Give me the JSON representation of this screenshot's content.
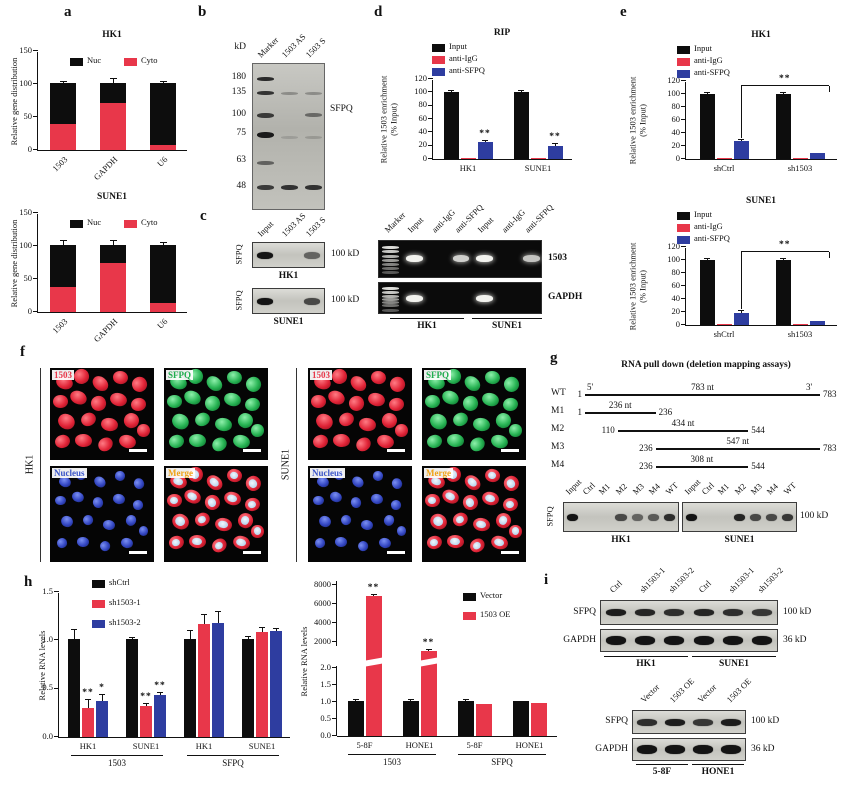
{
  "figure": {
    "panel_labels": {
      "a": "a",
      "b": "b",
      "c": "c",
      "d": "d",
      "e": "e",
      "f": "f",
      "g": "g",
      "h": "h",
      "i": "i"
    }
  },
  "chart_data": {
    "a1": {
      "type": "stacked-bar",
      "title": "HK1",
      "ylabel": "Relative gene distribution",
      "ymax": 150,
      "yticks": [
        {
          "v": 0,
          "label": "0"
        },
        {
          "v": 50,
          "label": "50"
        },
        {
          "v": 100,
          "label": "100"
        },
        {
          "v": 150,
          "label": "150"
        }
      ],
      "categories": [
        "1503",
        "GAPDH",
        "U6"
      ],
      "legend_pos": "inside-top",
      "series": [
        {
          "name": "Nuc",
          "color": "#0d0d0d",
          "values": [
            61,
            29,
            93
          ],
          "err": [
            2,
            6,
            2
          ]
        },
        {
          "name": "Cyto",
          "color": "#e8374a",
          "values": [
            40,
            72,
            8
          ],
          "err": [
            3,
            5,
            2
          ]
        }
      ]
    },
    "a2": {
      "type": "stacked-bar",
      "title": "SUNE1",
      "ylabel": "Relative gene distribution",
      "ymax": 150,
      "yticks": [
        {
          "v": 0,
          "label": "0"
        },
        {
          "v": 50,
          "label": "50"
        },
        {
          "v": 100,
          "label": "100"
        },
        {
          "v": 150,
          "label": "150"
        }
      ],
      "categories": [
        "1503",
        "GAPDH",
        "U6"
      ],
      "legend_pos": "inside-top",
      "series": [
        {
          "name": "Nuc",
          "color": "#0d0d0d",
          "values": [
            64,
            27,
            89
          ],
          "err": [
            5,
            5,
            2
          ]
        },
        {
          "name": "Cyto",
          "color": "#e8374a",
          "values": [
            38,
            75,
            13
          ],
          "err": [
            4,
            4,
            2
          ]
        }
      ]
    },
    "d": {
      "type": "grouped-bar",
      "title": "RIP",
      "ylabel": "Relative 1503 enrichment",
      "ylabel2": "(% Input)",
      "ymax": 120,
      "yticks": [
        {
          "v": 0,
          "label": "0"
        },
        {
          "v": 20,
          "label": "20"
        },
        {
          "v": 40,
          "label": "40"
        },
        {
          "v": 60,
          "label": "60"
        },
        {
          "v": 80,
          "label": "80"
        },
        {
          "v": 100,
          "label": "100"
        },
        {
          "v": 120,
          "label": "120"
        }
      ],
      "categories": [
        "HK1",
        "SUNE1"
      ],
      "legend_pos": "above-left",
      "series": [
        {
          "name": "Input",
          "color": "#0d0d0d",
          "values": [
            100,
            100
          ],
          "err": [
            1.5,
            1.5
          ]
        },
        {
          "name": "anti-IgG",
          "color": "#e8374a",
          "values": [
            2,
            2
          ],
          "err": [
            0.5,
            0.5
          ]
        },
        {
          "name": "anti-SFPQ",
          "color": "#2e3da0",
          "values": [
            25,
            20
          ],
          "err": [
            2,
            2
          ],
          "sig": [
            "**",
            "**"
          ]
        }
      ]
    },
    "e1": {
      "type": "grouped-bar",
      "title": "HK1",
      "ylabel": "Relative 1503 enrichment",
      "ylabel2": "(% Input)",
      "ymax": 120,
      "yticks": [
        {
          "v": 0,
          "label": "0"
        },
        {
          "v": 20,
          "label": "20"
        },
        {
          "v": 40,
          "label": "40"
        },
        {
          "v": 60,
          "label": "60"
        },
        {
          "v": 80,
          "label": "80"
        },
        {
          "v": 100,
          "label": "100"
        },
        {
          "v": 120,
          "label": "120"
        }
      ],
      "categories": [
        "shCtrl",
        "sh1503"
      ],
      "legend_pos": "above-left",
      "bracket": {
        "label": "**",
        "y": 112,
        "leg1": 32,
        "leg2": 103
      },
      "series": [
        {
          "name": "Input",
          "color": "#0d0d0d",
          "values": [
            100,
            100
          ],
          "err": [
            2,
            2
          ]
        },
        {
          "name": "anti-IgG",
          "color": "#e8374a",
          "values": [
            1.5,
            1.5
          ],
          "err": [
            0.5,
            0.5
          ]
        },
        {
          "name": "anti-SFPQ",
          "color": "#2e3da0",
          "values": [
            27,
            10
          ],
          "err": [
            2,
            1
          ]
        }
      ]
    },
    "e2": {
      "type": "grouped-bar",
      "title": "SUNE1",
      "ylabel": "Relative 1503 enrichment",
      "ylabel2": "(% Input)",
      "ymax": 120,
      "yticks": [
        {
          "v": 0,
          "label": "0"
        },
        {
          "v": 20,
          "label": "20"
        },
        {
          "v": 40,
          "label": "40"
        },
        {
          "v": 60,
          "label": "60"
        },
        {
          "v": 80,
          "label": "80"
        },
        {
          "v": 100,
          "label": "100"
        },
        {
          "v": 120,
          "label": "120"
        }
      ],
      "categories": [
        "shCtrl",
        "sh1503"
      ],
      "legend_pos": "above-left",
      "bracket": {
        "label": "**",
        "y": 112,
        "leg1": 24,
        "leg2": 103
      },
      "series": [
        {
          "name": "Input",
          "color": "#0d0d0d",
          "values": [
            100,
            100
          ],
          "err": [
            1.5,
            1.5
          ]
        },
        {
          "name": "anti-IgG",
          "color": "#e8374a",
          "values": [
            2,
            1
          ],
          "err": [
            0.5,
            0.5
          ]
        },
        {
          "name": "anti-SFPQ",
          "color": "#2e3da0",
          "values": [
            19,
            6
          ],
          "err": [
            2,
            1
          ]
        }
      ]
    },
    "h1": {
      "type": "grouped-bar",
      "ylabel": "Relative RNA levels",
      "ymax": 1.5,
      "yticks": [
        {
          "v": 0,
          "label": "0.0"
        },
        {
          "v": 0.5,
          "label": "0.5"
        },
        {
          "v": 1.0,
          "label": "1.0"
        },
        {
          "v": 1.5,
          "label": "1.5"
        }
      ],
      "categories": [
        "HK1",
        "SUNE1",
        "HK1",
        "SUNE1"
      ],
      "legend_pos": "top-left",
      "groups": [
        {
          "label": "1503",
          "span": 2
        },
        {
          "label": "SFPQ",
          "span": 2
        }
      ],
      "series": [
        {
          "name": "shCtrl",
          "color": "#0d0d0d",
          "values": [
            1.01,
            1.01,
            1.01,
            1.01
          ],
          "err": [
            0.1,
            0.01,
            0.09,
            0.03
          ]
        },
        {
          "name": "sh1503-1",
          "color": "#e8374a",
          "values": [
            0.3,
            0.32,
            1.17,
            1.09
          ],
          "err": [
            0.08,
            0.02,
            0.09,
            0.04
          ],
          "sig": [
            "**",
            "**",
            "",
            ""
          ]
        },
        {
          "name": "sh1503-2",
          "color": "#2e3da0",
          "values": [
            0.37,
            0.44,
            1.18,
            1.1
          ],
          "err": [
            0.07,
            0.02,
            0.11,
            0.02
          ],
          "sig": [
            "*",
            "**",
            "",
            ""
          ]
        }
      ]
    },
    "h2": {
      "type": "grouped-bar",
      "ylabel": "Relative RNA levels",
      "broken": true,
      "yticks": [
        {
          "v": 0,
          "label": "0.0"
        },
        {
          "v": 0.5,
          "label": "0.5"
        },
        {
          "v": 1.0,
          "label": "1.0"
        },
        {
          "v": 1.5,
          "label": "1.5"
        },
        {
          "v": 2.0,
          "label": "2.0"
        },
        {
          "v": 2000,
          "label": "2000"
        },
        {
          "v": 4000,
          "label": "4000"
        },
        {
          "v": 6000,
          "label": "6000"
        },
        {
          "v": 8000,
          "label": "8000"
        }
      ],
      "categories": [
        "5-8F",
        "HONE1",
        "5-8F",
        "HONE1"
      ],
      "legend_pos": "top-right",
      "groups": [
        {
          "label": "1503",
          "span": 2
        },
        {
          "label": "SFPQ",
          "span": 2
        }
      ],
      "series": [
        {
          "name": "Vector",
          "color": "#0d0d0d",
          "values": [
            1.02,
            1.02,
            1.02,
            1.02
          ],
          "err": [
            0.04,
            0.03,
            0.03,
            0.02
          ]
        },
        {
          "name": "1503 OE",
          "color": "#e8374a",
          "values": [
            6800,
            1300,
            0.93,
            0.96
          ],
          "err": [
            180,
            90,
            0.02,
            0.02
          ],
          "sig": [
            "**",
            "**",
            "",
            ""
          ]
        }
      ]
    }
  },
  "panel_b": {
    "kd_label": "kD",
    "ladder": [
      "180",
      "135",
      "100",
      "75",
      "63",
      "48"
    ],
    "lanes": [
      "Marker",
      "1503 AS",
      "1503 S"
    ],
    "protein_label": "SFPQ"
  },
  "panel_c": {
    "lanes": [
      "Input",
      "1503 AS",
      "1503 S"
    ],
    "blots": [
      {
        "antibody": "SFPQ",
        "cell": "HK1",
        "size": "100 kD",
        "bands": [
          1,
          0,
          0.55
        ]
      },
      {
        "antibody": "SFPQ",
        "cell": "SUNE1",
        "size": "100 kD",
        "bands": [
          1,
          0,
          0.7
        ]
      }
    ]
  },
  "panel_d_gel": {
    "lanes": [
      "Marker",
      "Input",
      "anti-IgG",
      "anti-SFPQ",
      "Input",
      "anti-IgG",
      "anti-SFPQ"
    ],
    "rows": [
      {
        "label": "1503",
        "bands": [
          0,
          1,
          0,
          0.85,
          1,
          0,
          0.8
        ]
      },
      {
        "label": "GAPDH",
        "bands": [
          0,
          1,
          0,
          0,
          1,
          0,
          0
        ]
      }
    ],
    "groups": [
      "HK1",
      "SUNE1"
    ]
  },
  "panel_f": {
    "cell_lines": [
      "HK1",
      "SUNE1"
    ],
    "channels": [
      {
        "label": "1503",
        "color": "#e8374a"
      },
      {
        "label": "SFPQ",
        "color": "#1fae4e"
      },
      {
        "label": "Nucleus",
        "color": "#3b55c8"
      },
      {
        "label": "Merge",
        "color": "#f0a318"
      }
    ]
  },
  "panel_g": {
    "title": "RNA pull down (deletion mapping assays)",
    "total_nt": 783,
    "constructs": [
      {
        "name": "WT",
        "start": 1,
        "end": 783,
        "length": "783 nt",
        "five": "5'",
        "three": "3'"
      },
      {
        "name": "M1",
        "start": 1,
        "end": 236,
        "length": "236 nt"
      },
      {
        "name": "M2",
        "start": 110,
        "end": 544,
        "length": "434 nt"
      },
      {
        "name": "M3",
        "start": 236,
        "end": 783,
        "length": "547 nt"
      },
      {
        "name": "M4",
        "start": 236,
        "end": 544,
        "length": "308 nt"
      }
    ],
    "lanes": [
      "Input",
      "Ctrl",
      "M1",
      "M2",
      "M3",
      "M4",
      "WT"
    ],
    "antibody": "SFPQ",
    "size": "100 kD",
    "blots": [
      {
        "cell": "HK1",
        "bands": [
          1,
          0,
          0,
          0.7,
          0.55,
          0.6,
          0.85
        ]
      },
      {
        "cell": "SUNE1",
        "bands": [
          1,
          0,
          0,
          0.9,
          0.7,
          0.7,
          0.8
        ]
      }
    ]
  },
  "panel_i": {
    "top": {
      "lanes": [
        "Ctrl",
        "sh1503-1",
        "sh1503-2",
        "Ctrl",
        "sh1503-1",
        "sh1503-2"
      ],
      "rows": [
        {
          "antibody": "SFPQ",
          "size": "100 kD",
          "bands": [
            0.95,
            0.9,
            0.85,
            0.9,
            0.85,
            0.8
          ]
        },
        {
          "antibody": "GAPDH",
          "size": "36 kD",
          "bands": [
            1,
            1,
            1,
            1,
            1,
            1
          ]
        }
      ],
      "groups": [
        "HK1",
        "SUNE1"
      ]
    },
    "bottom": {
      "lanes": [
        "Vector",
        "1503 OE",
        "Vector",
        "1503 OE"
      ],
      "rows": [
        {
          "antibody": "SFPQ",
          "size": "100 kD",
          "bands": [
            0.85,
            0.95,
            0.8,
            0.95
          ]
        },
        {
          "antibody": "GAPDH",
          "size": "36 kD",
          "bands": [
            1,
            1,
            1,
            1
          ]
        }
      ],
      "groups": [
        "5-8F",
        "HONE1"
      ]
    }
  }
}
